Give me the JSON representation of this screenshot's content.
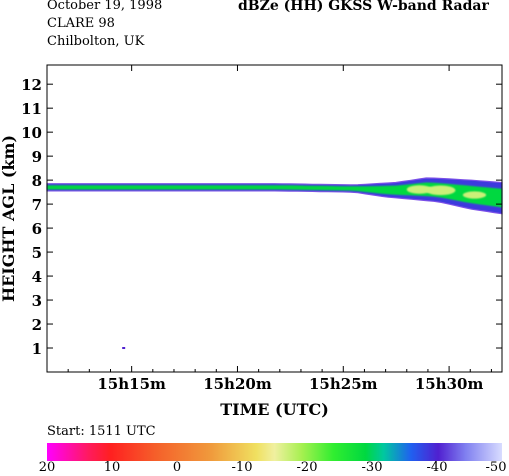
{
  "header": {
    "date": "October 19, 1998",
    "campaign": "CLARE 98",
    "location": "Chilbolton, UK",
    "title": "dBZe (HH)   GKSS  W-band Radar"
  },
  "colorbar": {
    "start_label": "Start: 1511 UTC",
    "min": -50,
    "max": 20,
    "tick_labels": [
      "20",
      "10",
      "0",
      "-10",
      "-20",
      "-30",
      "-40",
      "-50"
    ]
  },
  "chart_data": {
    "type": "heatmap",
    "title": "dBZe (HH)   GKSS  W-band Radar",
    "xlabel": "TIME (UTC)",
    "ylabel": "HEIGHT AGL (km)",
    "x_range_min": [
      11,
      32.5
    ],
    "ylim": [
      0,
      12.8
    ],
    "xticks": [
      {
        "min": 15,
        "label": "15h15m"
      },
      {
        "min": 20,
        "label": "15h20m"
      },
      {
        "min": 25,
        "label": "15h25m"
      },
      {
        "min": 30,
        "label": "15h30m"
      }
    ],
    "yticks": [
      1,
      2,
      3,
      4,
      5,
      6,
      7,
      8,
      9,
      10,
      11,
      12
    ],
    "echo_layers": [
      {
        "name": "upper cloud layer",
        "start_min": 11.0,
        "end_min": 32.5,
        "base_km": [
          [
            11.0,
            7.55
          ],
          [
            22.0,
            7.55
          ],
          [
            25.5,
            7.5
          ],
          [
            27.0,
            7.3
          ],
          [
            29.5,
            7.1
          ],
          [
            31.0,
            6.8
          ],
          [
            32.5,
            6.6
          ]
        ],
        "top_km": [
          [
            11.0,
            7.85
          ],
          [
            22.0,
            7.85
          ],
          [
            25.5,
            7.8
          ],
          [
            27.5,
            7.9
          ],
          [
            29.0,
            8.1
          ],
          [
            31.0,
            8.0
          ],
          [
            32.5,
            7.9
          ]
        ],
        "typical_dbze": -24,
        "max_dbze": -12
      }
    ],
    "isolated_echoes": [
      {
        "min": 14.6,
        "km": 1.0,
        "dbze": -40
      }
    ]
  }
}
